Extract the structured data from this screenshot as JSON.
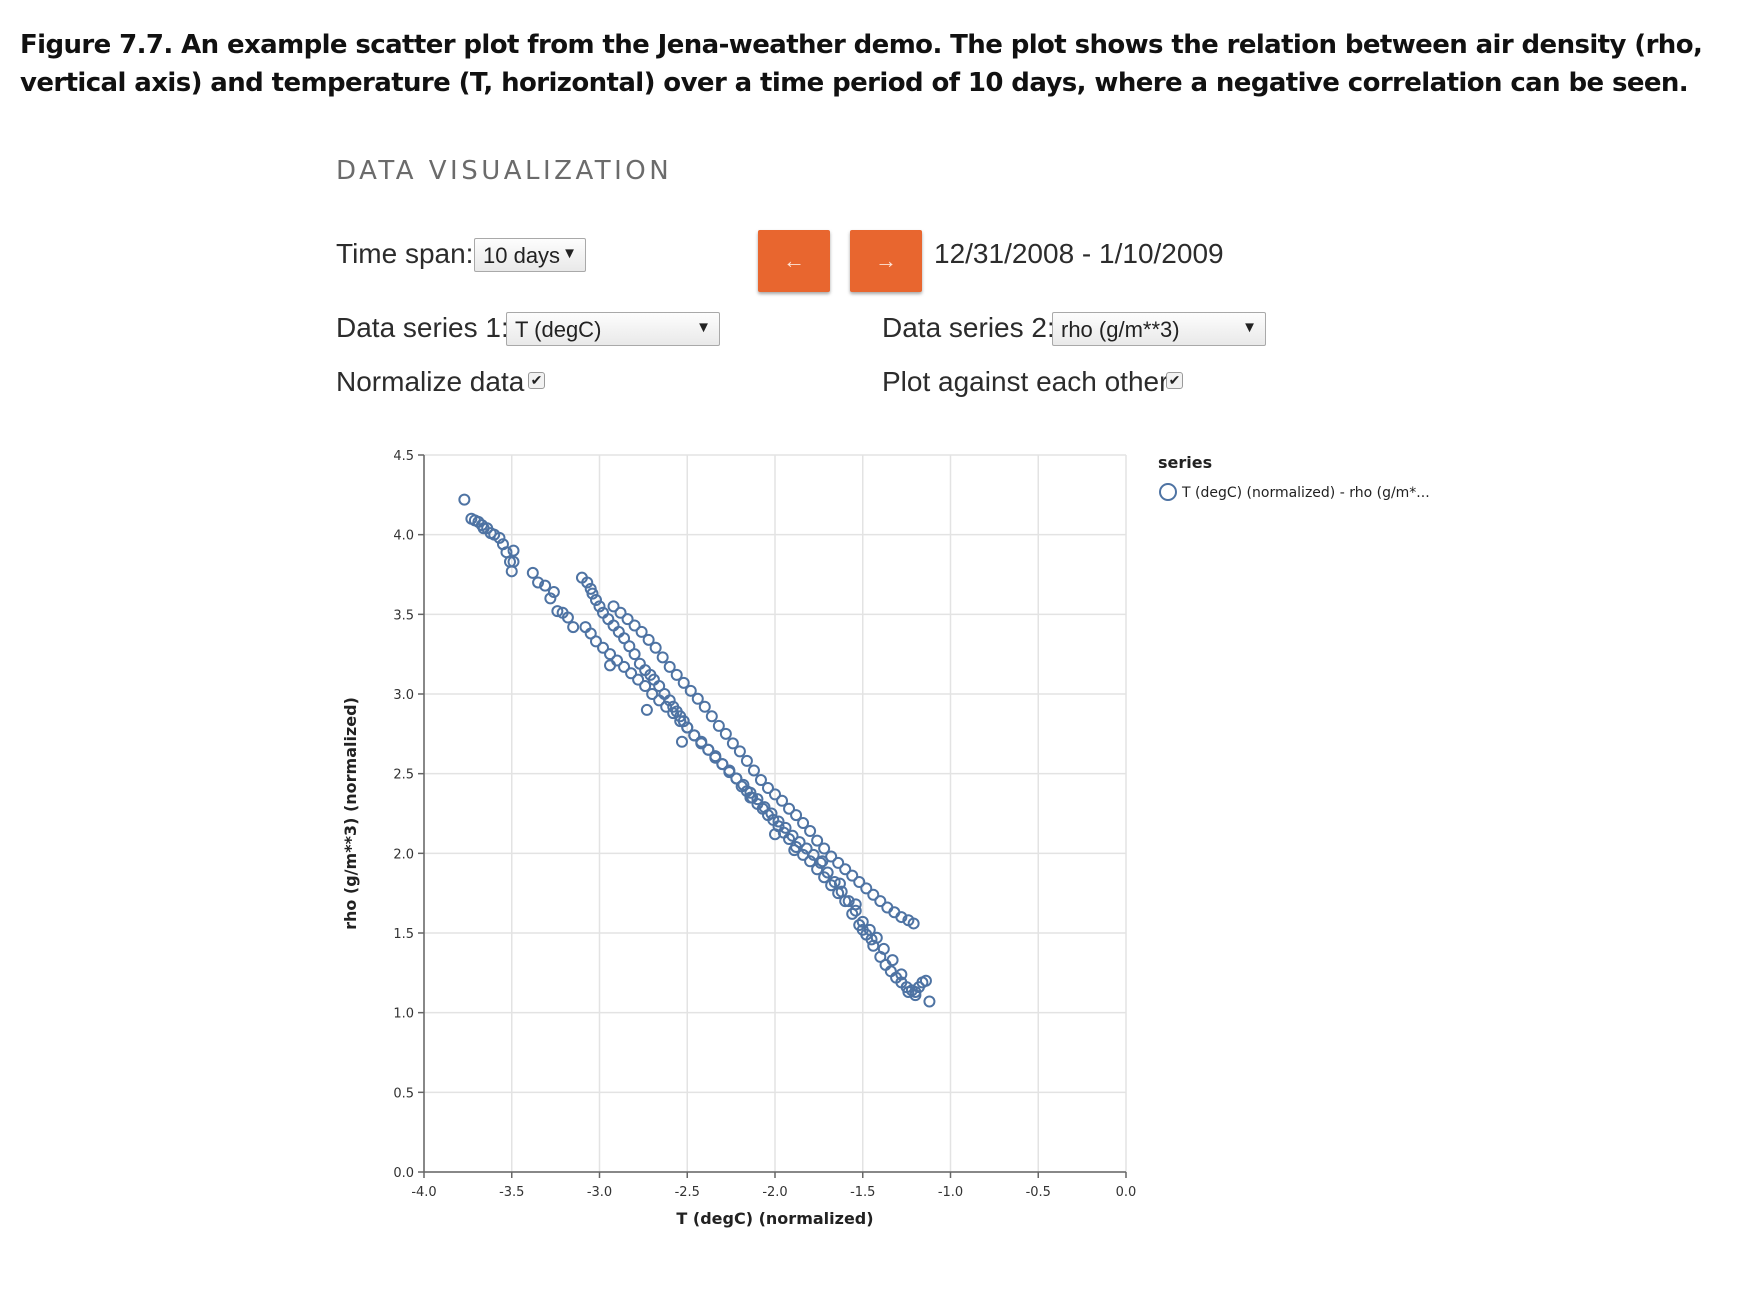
{
  "caption": "Figure 7.7. An example scatter plot from the Jena-weather demo. The plot shows the relation between air density (rho, vertical axis) and temperature (T, horizontal) over a time period of 10 days, where a negative correlation can be seen.",
  "panel_title": "DATA VISUALIZATION",
  "controls": {
    "time_span_label": "Time span:",
    "time_span_value": "10 days",
    "prev_label": "←",
    "next_label": "→",
    "date_range": "12/31/2008 - 1/10/2009",
    "series1_label": "Data series 1:",
    "series1_value": "T (degC)",
    "series2_label": "Data series 2:",
    "series2_value": "rho (g/m**3)",
    "normalize_label": "Normalize data",
    "normalize_checked": true,
    "plot_against_label": "Plot against each other",
    "plot_against_checked": true,
    "caret": "▼",
    "check_mark": "✔"
  },
  "chart_data": {
    "type": "scatter",
    "xlabel": "T (degC) (normalized)",
    "ylabel": "rho (g/m**3) (normalized)",
    "xlim": [
      -4.0,
      0.0
    ],
    "ylim": [
      0.0,
      4.5
    ],
    "x_ticks": [
      "-4.0",
      "-3.5",
      "-3.0",
      "-2.5",
      "-2.0",
      "-1.5",
      "-1.0",
      "-0.5",
      "0.0"
    ],
    "y_ticks": [
      "0.0",
      "0.5",
      "1.0",
      "1.5",
      "2.0",
      "2.5",
      "3.0",
      "3.5",
      "4.0",
      "4.5"
    ],
    "grid": true,
    "legend_title": "series",
    "legend_placement": "top-right",
    "marker": "open-circle",
    "color": "#4e73a3",
    "series": [
      {
        "name": "T (degC) (normalized) - rho (g/m*...",
        "x": [
          -3.77,
          -3.73,
          -3.71,
          -3.69,
          -3.67,
          -3.66,
          -3.64,
          -3.62,
          -3.6,
          -3.57,
          -3.55,
          -3.53,
          -3.51,
          -3.5,
          -3.49,
          -3.49,
          -3.38,
          -3.35,
          -3.31,
          -3.28,
          -3.26,
          -3.24,
          -3.21,
          -3.18,
          -3.15,
          -3.1,
          -3.07,
          -3.05,
          -3.04,
          -3.02,
          -3.0,
          -2.98,
          -2.95,
          -2.92,
          -2.89,
          -2.86,
          -2.83,
          -2.8,
          -2.77,
          -2.74,
          -2.71,
          -2.69,
          -2.66,
          -2.63,
          -2.6,
          -2.58,
          -2.56,
          -2.54,
          -2.52,
          -2.5,
          -2.46,
          -2.42,
          -2.38,
          -2.34,
          -2.3,
          -2.26,
          -2.22,
          -2.19,
          -2.16,
          -2.13,
          -2.1,
          -2.07,
          -2.04,
          -2.01,
          -1.98,
          -1.95,
          -1.92,
          -1.88,
          -1.84,
          -1.8,
          -1.76,
          -1.72,
          -1.68,
          -1.64,
          -1.6,
          -1.56,
          -1.52,
          -1.48,
          -1.44,
          -1.4,
          -1.37,
          -1.34,
          -1.31,
          -1.28,
          -1.25,
          -1.22,
          -1.2,
          -1.18,
          -1.16,
          -1.14,
          -1.12,
          -1.2,
          -1.24,
          -1.28,
          -1.33,
          -1.38,
          -1.42,
          -1.46,
          -1.5,
          -1.54,
          -1.58,
          -1.62,
          -1.66,
          -1.7,
          -1.74,
          -1.78,
          -1.82,
          -1.86,
          -1.9,
          -1.94,
          -1.98,
          -2.02,
          -2.06,
          -2.1,
          -2.14,
          -2.18,
          -2.22,
          -2.26,
          -2.3,
          -2.34,
          -2.38,
          -2.42,
          -2.46,
          -2.5,
          -2.54,
          -2.58,
          -2.62,
          -2.66,
          -2.7,
          -2.74,
          -2.78,
          -2.82,
          -2.86,
          -2.9,
          -2.94,
          -2.98,
          -3.02,
          -3.05,
          -3.08,
          -2.92,
          -2.88,
          -2.84,
          -2.8,
          -2.76,
          -2.72,
          -2.68,
          -2.64,
          -2.6,
          -2.56,
          -2.52,
          -2.48,
          -2.44,
          -2.4,
          -2.36,
          -2.32,
          -2.28,
          -2.24,
          -2.2,
          -2.16,
          -2.12,
          -2.08,
          -2.04,
          -2.0,
          -1.96,
          -1.92,
          -1.88,
          -1.84,
          -1.8,
          -1.76,
          -1.72,
          -1.68,
          -1.64,
          -1.6,
          -1.56,
          -1.52,
          -1.48,
          -1.44,
          -1.4,
          -1.36,
          -1.32,
          -1.28,
          -1.24,
          -1.21,
          -2.94,
          -2.73,
          -2.53,
          -2.14,
          -2.0,
          -1.89,
          -1.73,
          -1.63,
          -1.54,
          -1.5,
          -1.45
        ],
        "y": [
          4.22,
          4.1,
          4.09,
          4.08,
          4.06,
          4.04,
          4.04,
          4.01,
          4.0,
          3.98,
          3.94,
          3.89,
          3.83,
          3.77,
          3.83,
          3.9,
          3.76,
          3.7,
          3.68,
          3.6,
          3.64,
          3.52,
          3.51,
          3.48,
          3.42,
          3.73,
          3.7,
          3.66,
          3.63,
          3.59,
          3.55,
          3.51,
          3.47,
          3.43,
          3.39,
          3.35,
          3.3,
          3.25,
          3.19,
          3.15,
          3.12,
          3.09,
          3.05,
          3.0,
          2.96,
          2.92,
          2.89,
          2.86,
          2.83,
          2.79,
          2.74,
          2.69,
          2.65,
          2.6,
          2.56,
          2.51,
          2.47,
          2.42,
          2.39,
          2.35,
          2.31,
          2.28,
          2.24,
          2.21,
          2.17,
          2.13,
          2.09,
          2.04,
          1.99,
          1.95,
          1.9,
          1.85,
          1.8,
          1.75,
          1.7,
          1.62,
          1.55,
          1.49,
          1.42,
          1.35,
          1.3,
          1.26,
          1.22,
          1.19,
          1.16,
          1.14,
          1.13,
          1.16,
          1.19,
          1.2,
          1.07,
          1.11,
          1.13,
          1.24,
          1.33,
          1.4,
          1.47,
          1.52,
          1.57,
          1.64,
          1.7,
          1.76,
          1.82,
          1.88,
          1.94,
          1.99,
          2.03,
          2.07,
          2.11,
          2.16,
          2.2,
          2.25,
          2.29,
          2.34,
          2.38,
          2.43,
          2.47,
          2.52,
          2.56,
          2.61,
          2.65,
          2.7,
          2.74,
          2.79,
          2.83,
          2.88,
          2.92,
          2.96,
          3.0,
          3.05,
          3.09,
          3.13,
          3.17,
          3.21,
          3.25,
          3.29,
          3.33,
          3.38,
          3.42,
          3.55,
          3.51,
          3.47,
          3.43,
          3.39,
          3.34,
          3.29,
          3.23,
          3.17,
          3.12,
          3.07,
          3.02,
          2.97,
          2.92,
          2.86,
          2.8,
          2.75,
          2.69,
          2.64,
          2.58,
          2.52,
          2.46,
          2.41,
          2.37,
          2.33,
          2.28,
          2.24,
          2.19,
          2.14,
          2.08,
          2.03,
          1.98,
          1.94,
          1.9,
          1.86,
          1.82,
          1.78,
          1.74,
          1.7,
          1.66,
          1.63,
          1.6,
          1.58,
          1.56,
          3.18,
          2.9,
          2.7,
          2.35,
          2.12,
          2.02,
          1.95,
          1.81,
          1.68,
          1.52,
          1.46
        ]
      }
    ]
  }
}
